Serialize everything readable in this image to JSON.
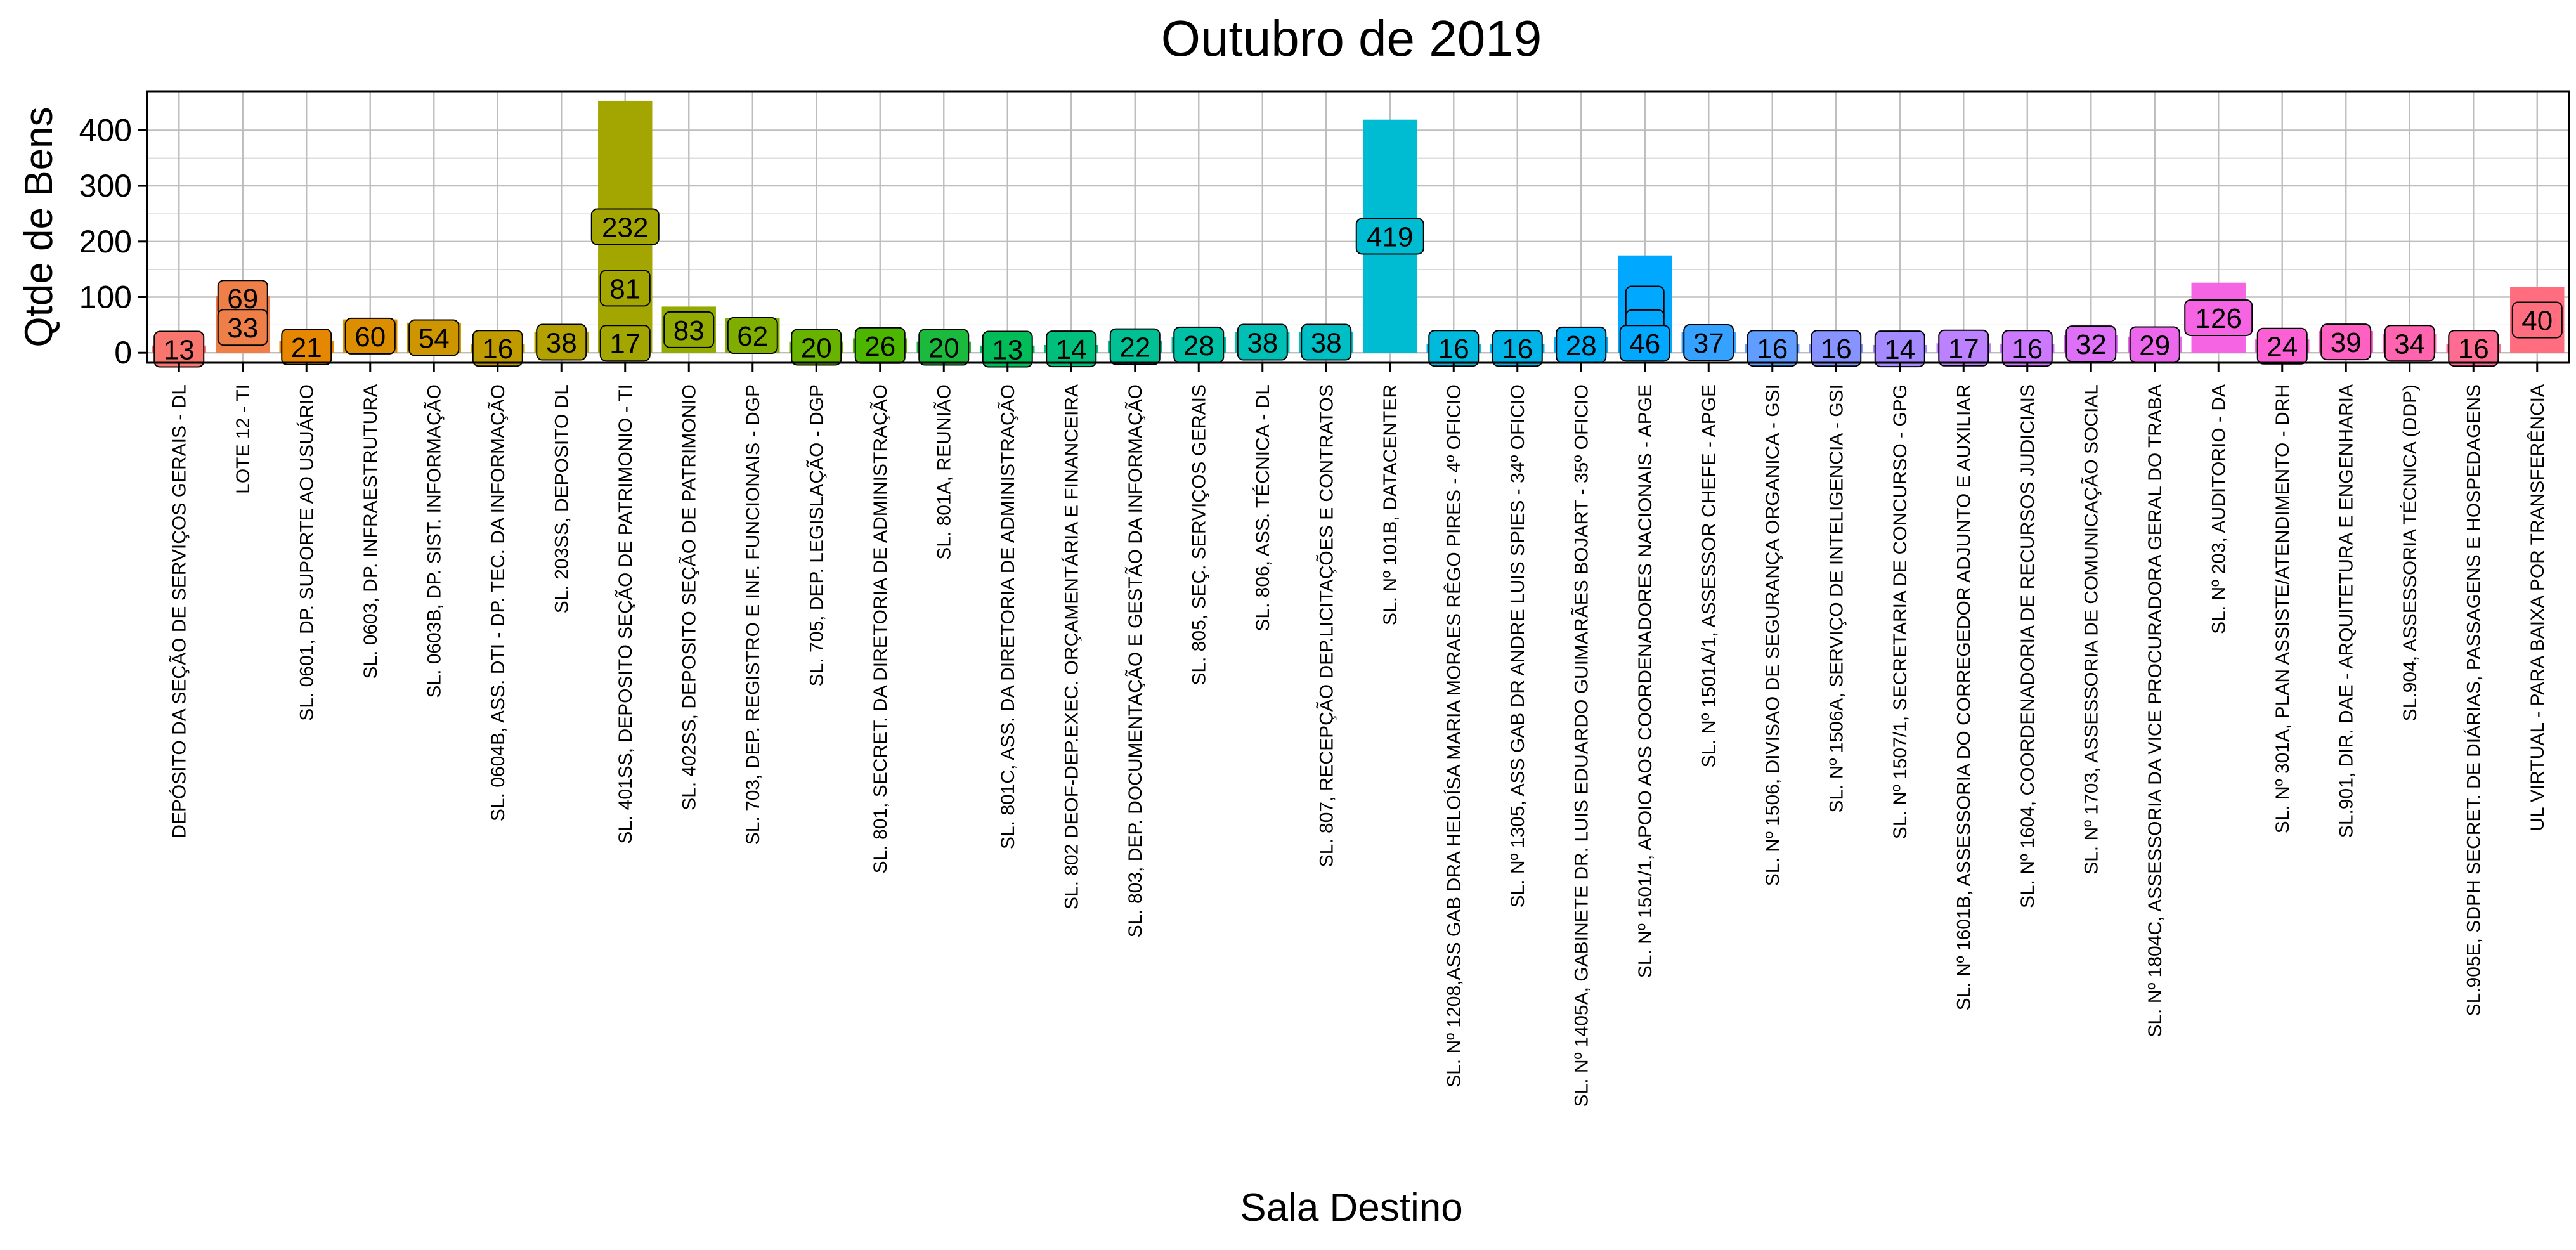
{
  "chart_data": {
    "type": "bar",
    "title": "Outubro  de  2019",
    "xlabel": "Sala Destino",
    "ylabel": "Qtde de Bens",
    "ylim": [
      -18,
      470
    ],
    "yticks": [
      0,
      100,
      200,
      300,
      400
    ],
    "grid": true,
    "legend": "none",
    "categories": [
      "DEPÓSITO DA SEÇÃO DE SERVIÇOS GERAIS - DL",
      "LOTE 12 - TI",
      "SL. 0601, DP. SUPORTE AO USUÁRIO",
      "SL. 0603, DP. INFRAESTRUTURA",
      "SL. 0603B, DP. SIST. INFORMAÇÃO",
      "SL. 0604B, ASS. DTI - DP. TEC. DA INFORMAÇÃO",
      "SL. 203SS, DEPOSITO DL",
      "SL. 401SS, DEPOSITO SEÇÃO DE PATRIMONIO - TI",
      "SL. 402SS, DEPOSITO SEÇÃO DE PATRIMONIO",
      "SL. 703, DEP. REGISTRO E INF. FUNCIONAIS - DGP",
      "SL. 705, DEP. LEGISLAÇÃO - DGP",
      "SL. 801, SECRET. DA DIRETORIA DE ADMINISTRAÇÃO",
      "SL. 801A, REUNIÃO",
      "SL. 801C, ASS. DA DIRETORIA DE ADMINISTRAÇÃO",
      "SL. 802 DEOF-DEP.EXEC. ORÇAMENTÁRIA E FINANCEIRA",
      "SL. 803, DEP. DOCUMENTAÇÃO E GESTÃO DA INFORMAÇÃO",
      "SL. 805, SEÇ. SERVIÇOS GERAIS",
      "SL. 806, ASS. TÉCNICA - DL",
      "SL. 807, RECEPÇÃO DEP.LICITAÇÕES E CONTRATOS",
      "SL. Nº 101B, DATACENTER",
      "SL. Nº 1208,ASS GAB DRA HELOÍSA MARIA MORAES RÊGO PIRES - 4º OFICIO",
      "SL. Nº 1305, ASS GAB DR ANDRE LUIS SPIES - 34º OFICIO",
      "SL. Nº 1405A, GABINETE DR. LUIS EDUARDO GUIMARÃES BOJART - 35º OFICIO",
      "SL. Nº 1501/1, APOIO AOS COORDENADORES NACIONAIS - APGE",
      "SL. Nº 1501A/1, ASSESSOR CHEFE - APGE",
      "SL. Nº 1506, DIVISAO DE SEGURANÇA ORGANICA - GSI",
      "SL. Nº 1506A, SERVIÇO DE INTELIGENCIA - GSI",
      "SL. Nº 1507/1, SECRETARIA DE CONCURSO - GPG",
      "SL. Nº 1601B, ASSESSORIA DO CORREGEDOR ADJUNTO E AUXILIAR",
      "SL. Nº 1604, COORDENADORIA DE RECURSOS JUDICIAIS",
      "SL. Nº 1703, ASSESSORIA DE COMUNICAÇÃO SOCIAL",
      "SL. Nº 1804C, ASSESSORIA DA VICE PROCURADORA GERAL DO TRABA",
      "SL. Nº 203, AUDITORIO - DA",
      "SL. Nº 301A, PLAN ASSISTE/ATENDIMENTO - DRH",
      "SL.901, DIR. DAE - ARQUITETURA E ENGENHARIA",
      "SL.904, ASSESSORIA TÉCNICA (DDP)",
      "SL.905E, SDPH SECRET. DE DIÁRIAS, PASSAGENS E HOSPEDAGENS",
      "UL VIRTUAL - PARA BAIXA POR TRANSFERÊNCIA"
    ],
    "colors": [
      "#F8766D",
      "#EF7F49",
      "#E58700",
      "#DA8E00",
      "#CD9600",
      "#C09B00",
      "#B2A100",
      "#A3A500",
      "#93AA00",
      "#7FAE00",
      "#68B300",
      "#4DB600",
      "#1CBA3C",
      "#00BC59",
      "#00BF7D",
      "#00C094",
      "#00C1A6",
      "#00C0B5",
      "#00BFC4",
      "#00BCD2",
      "#00B9DC",
      "#00B4E8",
      "#00B0F6",
      "#00A9FF",
      "#35A2FF",
      "#619CFF",
      "#8794FF",
      "#A58AFF",
      "#BC81FF",
      "#CD79FF",
      "#DE70F8",
      "#EB67EC",
      "#F564E3",
      "#FC60D5",
      "#FF61C3",
      "#FF65AE",
      "#FF6C91",
      "#FF6D7E"
    ],
    "series": [
      {
        "values": [
          13,
          102,
          21,
          60,
          54,
          16,
          38,
          453,
          83,
          62,
          20,
          26,
          20,
          13,
          14,
          22,
          28,
          38,
          38,
          419,
          16,
          16,
          28,
          175,
          37,
          16,
          16,
          14,
          17,
          16,
          32,
          29,
          126,
          24,
          39,
          34,
          16,
          118
        ]
      }
    ],
    "data_labels": [
      [
        "13"
      ],
      [
        "69",
        "33"
      ],
      [
        "21"
      ],
      [
        "60"
      ],
      [
        "54"
      ],
      [
        "16"
      ],
      [
        "38"
      ],
      [
        "232",
        "81",
        "17"
      ],
      [
        "83"
      ],
      [
        "62"
      ],
      [
        "20"
      ],
      [
        "26"
      ],
      [
        "20"
      ],
      [
        "13"
      ],
      [
        "14"
      ],
      [
        "22"
      ],
      [
        "28"
      ],
      [
        "38"
      ],
      [
        "38"
      ],
      [
        "419"
      ],
      [
        "16"
      ],
      [
        "16"
      ],
      [
        "28"
      ],
      [
        "",
        "",
        "46"
      ],
      [
        "37"
      ],
      [
        "16"
      ],
      [
        "16"
      ],
      [
        "14"
      ],
      [
        "17"
      ],
      [
        "16"
      ],
      [
        "32"
      ],
      [
        "29"
      ],
      [
        "126"
      ],
      [
        "24"
      ],
      [
        "39"
      ],
      [
        "34"
      ],
      [
        "16"
      ],
      [
        "40"
      ]
    ]
  }
}
